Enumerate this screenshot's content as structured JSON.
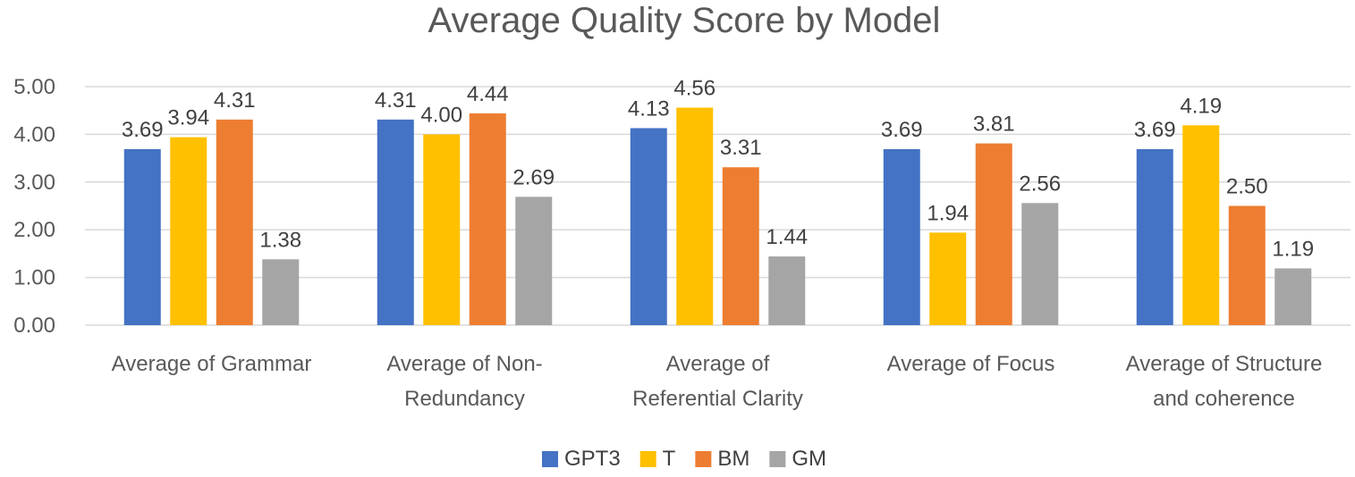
{
  "chart_data": {
    "type": "bar",
    "title": "Average Quality Score by Model",
    "categories": [
      [
        "Average of Grammar"
      ],
      [
        "Average of Non-",
        "Redundancy"
      ],
      [
        "Average of",
        "Referential Clarity"
      ],
      [
        "Average of Focus"
      ],
      [
        "Average of Structure",
        "and coherence"
      ]
    ],
    "series": [
      {
        "name": "GPT3",
        "color": "#4472c4",
        "values": [
          3.69,
          4.31,
          4.13,
          3.69,
          3.69
        ]
      },
      {
        "name": "T",
        "color": "#ffc000",
        "values": [
          3.94,
          4.0,
          4.56,
          1.94,
          4.19
        ]
      },
      {
        "name": "BM",
        "color": "#ed7d31",
        "values": [
          4.31,
          4.44,
          3.31,
          3.81,
          2.5
        ]
      },
      {
        "name": "GM",
        "color": "#a5a5a5",
        "values": [
          1.38,
          2.69,
          1.44,
          2.56,
          1.19
        ]
      }
    ],
    "yticks": [
      "0.00",
      "1.00",
      "2.00",
      "3.00",
      "4.00",
      "5.00"
    ],
    "ylim": [
      0,
      5
    ],
    "xlabel": "",
    "ylabel": "",
    "grid": true,
    "legend": "bottom"
  }
}
